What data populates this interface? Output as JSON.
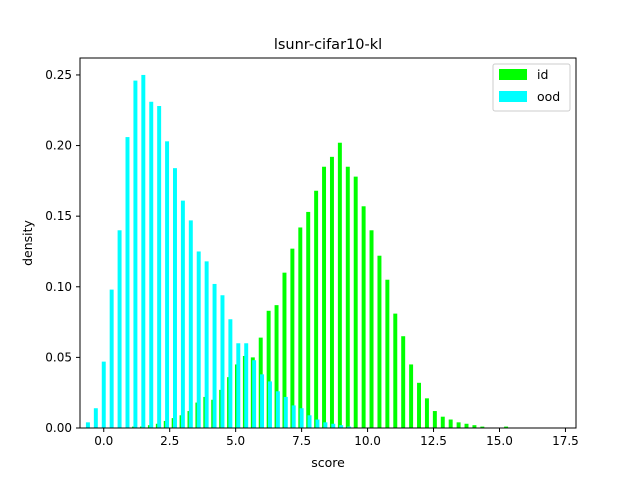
{
  "chart_data": {
    "type": "bar",
    "title": "lsunr-cifar10-kl",
    "xlabel": "score",
    "ylabel": "density",
    "xlim": [
      -0.9,
      17.9
    ],
    "ylim": [
      0,
      0.262
    ],
    "xticks": [
      0.0,
      2.5,
      5.0,
      7.5,
      10.0,
      12.5,
      15.0,
      17.5
    ],
    "xtick_labels": [
      "0.0",
      "2.5",
      "5.0",
      "7.5",
      "10.0",
      "12.5",
      "15.0",
      "17.5"
    ],
    "yticks": [
      0.0,
      0.05,
      0.1,
      0.15,
      0.2,
      0.25
    ],
    "ytick_labels": [
      "0.00",
      "0.05",
      "0.10",
      "0.15",
      "0.20",
      "0.25"
    ],
    "grid": false,
    "legend_position": "top-right",
    "series": [
      {
        "name": "id",
        "color": "#00ff00",
        "points": [
          [
            1.15,
            0.001
          ],
          [
            1.45,
            0.001
          ],
          [
            1.75,
            0.002
          ],
          [
            2.05,
            0.003
          ],
          [
            2.35,
            0.005
          ],
          [
            2.65,
            0.007
          ],
          [
            2.95,
            0.009
          ],
          [
            3.25,
            0.012
          ],
          [
            3.55,
            0.018
          ],
          [
            3.85,
            0.022
          ],
          [
            4.15,
            0.02
          ],
          [
            4.45,
            0.027
          ],
          [
            4.75,
            0.036
          ],
          [
            5.05,
            0.045
          ],
          [
            5.35,
            0.051
          ],
          [
            5.65,
            0.05
          ],
          [
            5.95,
            0.064
          ],
          [
            6.25,
            0.083
          ],
          [
            6.55,
            0.087
          ],
          [
            6.85,
            0.11
          ],
          [
            7.15,
            0.127
          ],
          [
            7.45,
            0.142
          ],
          [
            7.75,
            0.153
          ],
          [
            8.05,
            0.168
          ],
          [
            8.35,
            0.185
          ],
          [
            8.65,
            0.192
          ],
          [
            8.95,
            0.202
          ],
          [
            9.25,
            0.185
          ],
          [
            9.55,
            0.178
          ],
          [
            9.85,
            0.157
          ],
          [
            10.15,
            0.14
          ],
          [
            10.45,
            0.122
          ],
          [
            10.75,
            0.105
          ],
          [
            11.05,
            0.081
          ],
          [
            11.35,
            0.065
          ],
          [
            11.65,
            0.045
          ],
          [
            11.95,
            0.032
          ],
          [
            12.25,
            0.021
          ],
          [
            12.55,
            0.012
          ],
          [
            12.85,
            0.008
          ],
          [
            13.15,
            0.006
          ],
          [
            13.45,
            0.004
          ],
          [
            13.75,
            0.003
          ],
          [
            14.05,
            0.002
          ],
          [
            14.35,
            0.001
          ],
          [
            15.25,
            0.001
          ]
        ]
      },
      {
        "name": "ood",
        "color": "#00ffff",
        "points": [
          [
            -0.6,
            0.004
          ],
          [
            -0.3,
            0.014
          ],
          [
            0.0,
            0.047
          ],
          [
            0.3,
            0.098
          ],
          [
            0.6,
            0.14
          ],
          [
            0.9,
            0.206
          ],
          [
            1.2,
            0.246
          ],
          [
            1.5,
            0.25
          ],
          [
            1.8,
            0.231
          ],
          [
            2.1,
            0.228
          ],
          [
            2.4,
            0.203
          ],
          [
            2.7,
            0.184
          ],
          [
            3.0,
            0.161
          ],
          [
            3.3,
            0.147
          ],
          [
            3.6,
            0.125
          ],
          [
            3.9,
            0.118
          ],
          [
            4.2,
            0.102
          ],
          [
            4.5,
            0.094
          ],
          [
            4.8,
            0.077
          ],
          [
            5.1,
            0.06
          ],
          [
            5.4,
            0.06
          ],
          [
            5.7,
            0.048
          ],
          [
            6.0,
            0.038
          ],
          [
            6.3,
            0.033
          ],
          [
            6.6,
            0.026
          ],
          [
            6.9,
            0.022
          ],
          [
            7.2,
            0.016
          ],
          [
            7.5,
            0.014
          ],
          [
            7.8,
            0.009
          ],
          [
            8.1,
            0.006
          ],
          [
            8.4,
            0.004
          ],
          [
            8.7,
            0.003
          ],
          [
            9.0,
            0.002
          ],
          [
            9.3,
            0.001
          ]
        ]
      }
    ]
  }
}
